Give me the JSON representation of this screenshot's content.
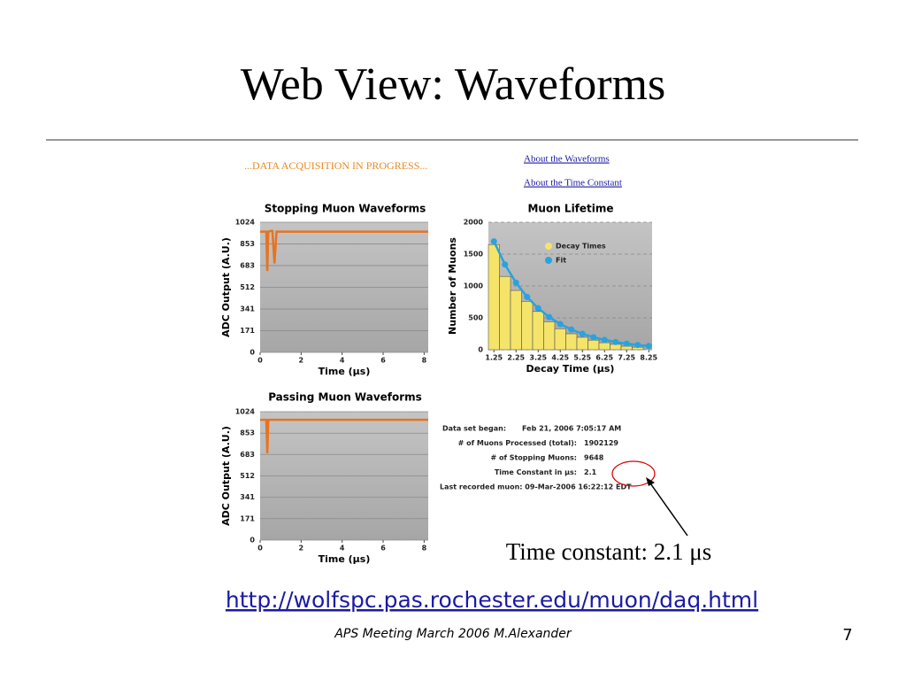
{
  "title": "Web View: Waveforms",
  "status": "...DATA ACQUISITION IN PROGRESS...",
  "links": [
    "About the Waveforms",
    "About the Time Constant"
  ],
  "chart_data": [
    {
      "type": "line",
      "title": "Stopping Muon Waveforms",
      "xlabel": "Time (µs)",
      "ylabel": "ADC Output (A.U.)",
      "x": [
        0,
        0.3,
        0.35,
        0.4,
        0.5,
        0.6,
        0.7,
        0.8,
        8.2
      ],
      "values": [
        950,
        950,
        640,
        950,
        955,
        955,
        700,
        950,
        950
      ],
      "color": "#e8731f",
      "xlim": [
        0,
        8.2
      ],
      "xticks": [
        0,
        2,
        4,
        6,
        8
      ],
      "ylim": [
        0,
        1024
      ],
      "yticks": [
        0,
        171,
        341,
        512,
        683,
        853,
        1024
      ],
      "grid": true
    },
    {
      "type": "histogram",
      "title": "Muon Lifetime",
      "xlabel": "Decay Time (µs)",
      "ylabel": "Number of Muons",
      "series": [
        {
          "name": "Decay Times",
          "color": "#f5e46a",
          "bins": [
            1.0,
            1.5,
            2.0,
            2.5,
            3.0,
            3.5,
            4.0,
            4.5,
            5.0,
            5.5,
            6.0,
            6.5,
            7.0,
            7.5,
            8.0
          ],
          "values": [
            1650,
            1150,
            930,
            760,
            600,
            440,
            330,
            250,
            195,
            150,
            110,
            85,
            55,
            40
          ]
        },
        {
          "name": "Fit",
          "color": "#29a3dd",
          "x": [
            1.25,
            1.75,
            2.25,
            2.75,
            3.25,
            3.75,
            4.25,
            4.75,
            5.25,
            5.75,
            6.25,
            6.75,
            7.25,
            7.75,
            8.25
          ],
          "values": [
            1700,
            1337,
            1052,
            828,
            651,
            512,
            403,
            317,
            250,
            196,
            154,
            122,
            96,
            75,
            59
          ]
        }
      ],
      "xlim": [
        1.0,
        8.4
      ],
      "xticks": [
        1.25,
        2.25,
        3.25,
        4.25,
        5.25,
        6.25,
        7.25,
        8.25
      ],
      "ylim": [
        0,
        2000
      ],
      "yticks": [
        0,
        500,
        1000,
        1500,
        2000
      ],
      "grid": true
    },
    {
      "type": "line",
      "title": "Passing Muon Waveforms",
      "xlabel": "Time (µs)",
      "ylabel": "ADC Output (A.U.)",
      "x": [
        0,
        0.3,
        0.35,
        0.4,
        8.2
      ],
      "values": [
        960,
        960,
        692,
        960,
        960
      ],
      "color": "#e8731f",
      "xlim": [
        0,
        8.2
      ],
      "xticks": [
        0,
        2,
        4,
        6,
        8
      ],
      "ylim": [
        0,
        1024
      ],
      "yticks": [
        0,
        171,
        341,
        512,
        683,
        853,
        1024
      ],
      "grid": true
    }
  ],
  "stats": [
    [
      "Data set began:",
      "Feb 21, 2006  7:05:17 AM"
    ],
    [
      "# of Muons Processed (total):",
      "1902129"
    ],
    [
      "# of Stopping Muons:",
      "9648"
    ],
    [
      "Time Constant in µs:",
      "2.1"
    ],
    [
      "Last recorded muon: 09-Mar-2006 16:22:12 EDT"
    ]
  ],
  "annotation": "Time constant: 2.1 μs",
  "url": "http://wolfspc.pas.rochester.edu/muon/daq.html",
  "footer": "APS Meeting March 2006 M.Alexander",
  "page_number": "7"
}
